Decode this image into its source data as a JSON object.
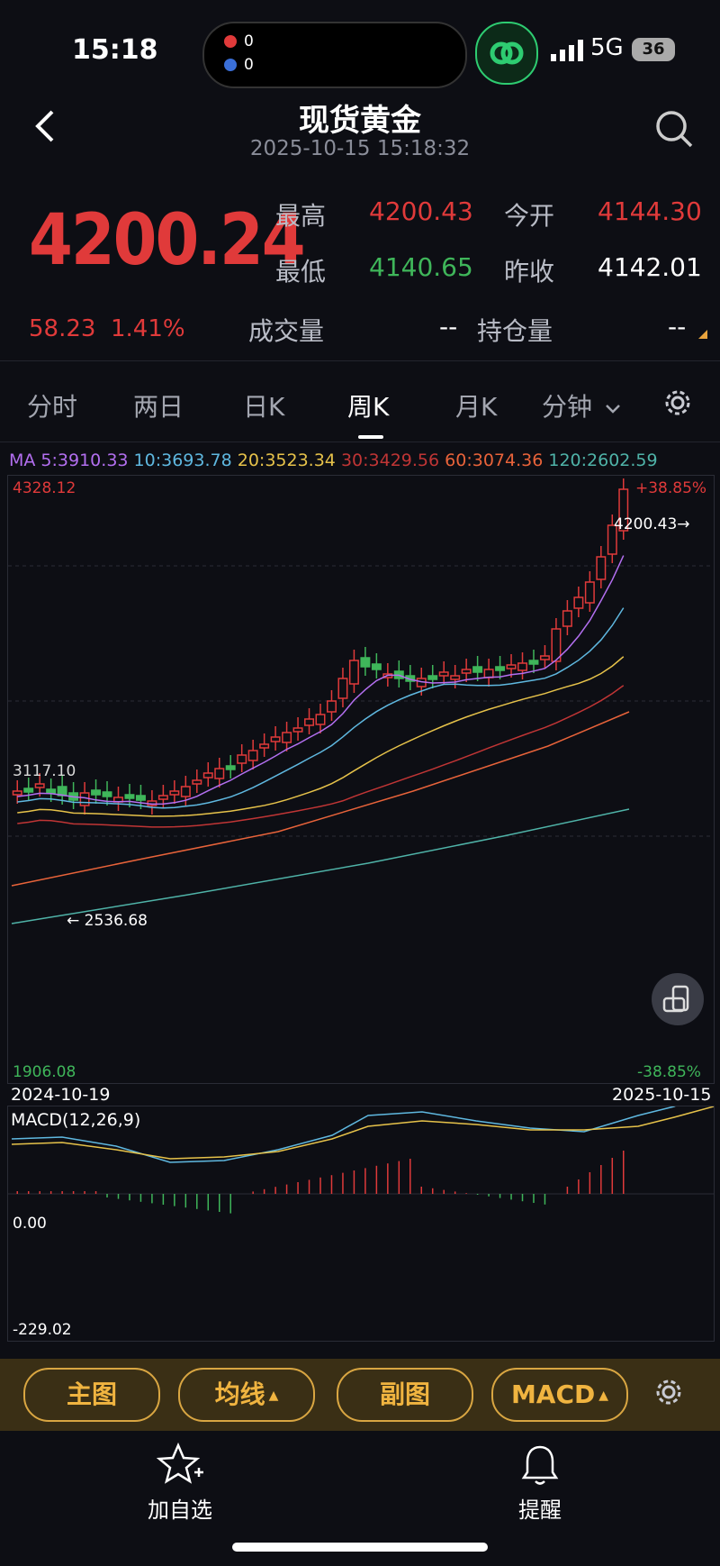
{
  "status_bar": {
    "time": "15:18",
    "notif1_count": "0",
    "notif2_count": "0",
    "network": "5G",
    "battery": "36"
  },
  "header": {
    "title": "现货黄金",
    "datetime": "2025-10-15 15:18:32"
  },
  "quote": {
    "price": "4200.24",
    "change": "58.23",
    "change_pct": "1.41%",
    "high_label": "最高",
    "high": "4200.43",
    "open_label": "今开",
    "open": "4144.30",
    "low_label": "最低",
    "low": "4140.65",
    "prev_close_label": "昨收",
    "prev_close": "4142.01",
    "volume_label": "成交量",
    "volume": "--",
    "open_interest_label": "持仓量",
    "open_interest": "--"
  },
  "tabs": [
    {
      "label": "分时"
    },
    {
      "label": "两日"
    },
    {
      "label": "日K"
    },
    {
      "label": "周K"
    },
    {
      "label": "月K"
    },
    {
      "label": "分钟"
    }
  ],
  "active_tab": "周K",
  "ma_legend": [
    {
      "label": "MA 5:3910.33",
      "color": "#b36ff0"
    },
    {
      "label": "10:3693.78",
      "color": "#5fb8e0"
    },
    {
      "label": "20:3523.34",
      "color": "#e6c24a"
    },
    {
      "label": "30:3429.56",
      "color": "#c03535"
    },
    {
      "label": "60:3074.36",
      "color": "#e8633a"
    },
    {
      "label": "120:2602.59",
      "color": "#4fb3a8"
    }
  ],
  "chart": {
    "top_price": "4328.12",
    "top_pct": "+38.85%",
    "mid_price": "3117.10",
    "bottom_price": "1906.08",
    "bottom_pct": "-38.85%",
    "max_marker": "4200.43→",
    "min_marker": "← 2536.68",
    "start_date": "2024-10-19",
    "end_date": "2025-10-15"
  },
  "macd": {
    "label": "MACD(12,26,9)",
    "zero": "0.00",
    "bottom": "-229.02"
  },
  "toolbar": {
    "main_chart": "主图",
    "ma_lines": "均线",
    "sub_chart": "副图",
    "macd": "MACD"
  },
  "bottom_nav": {
    "watchlist": "加自选",
    "alert": "提醒"
  },
  "colors": {
    "up": "#e03a3a",
    "down": "#3fb65a",
    "accent": "#f0b440",
    "background": "#0d0e14"
  }
}
